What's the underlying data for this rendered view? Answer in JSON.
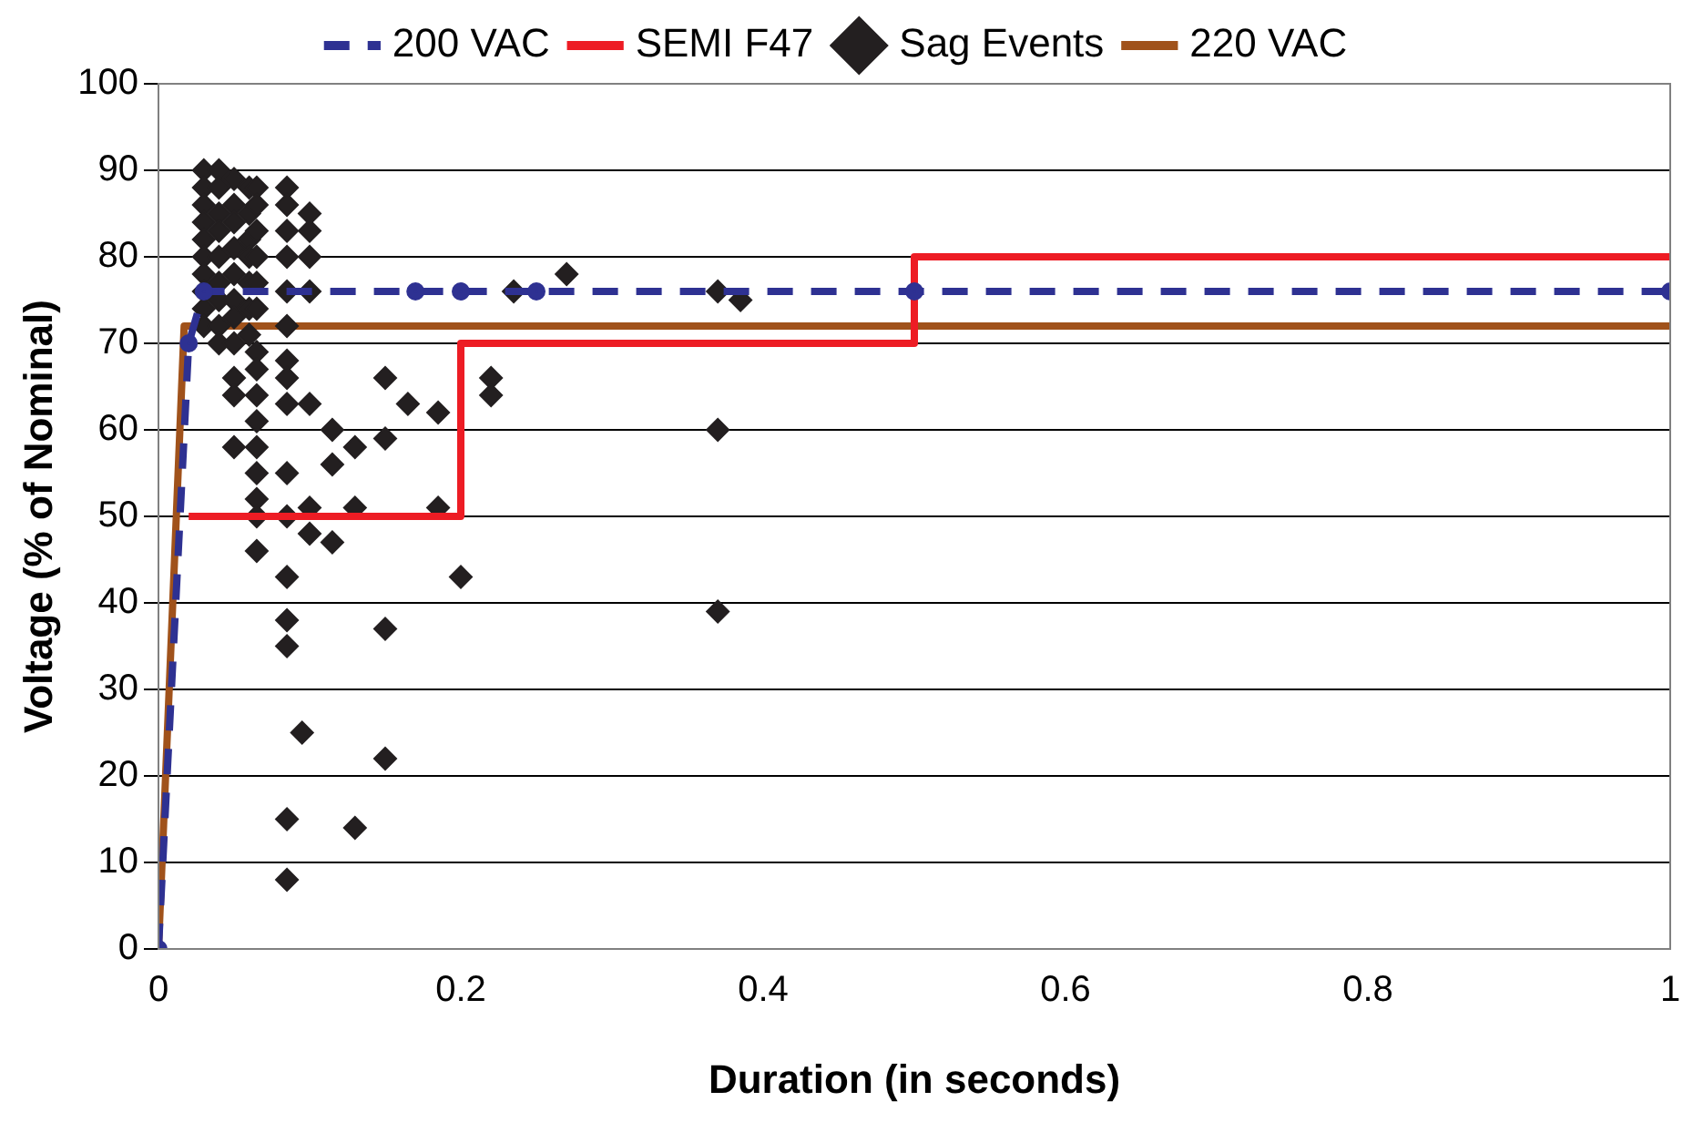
{
  "chart_data": {
    "type": "line",
    "xlabel": "Duration (in seconds)",
    "ylabel": "Voltage (% of Nominal)",
    "xlim": [
      0,
      1
    ],
    "xticks": [
      0,
      0.2,
      0.4,
      0.6,
      0.8,
      1
    ],
    "ylim": [
      0,
      100
    ],
    "yticks": [
      0,
      10,
      20,
      30,
      40,
      50,
      60,
      70,
      80,
      90,
      100
    ],
    "grid": "y",
    "legend": "top",
    "series": [
      {
        "name": "200 VAC",
        "type": "line",
        "color": "#2e3192",
        "line_style": "dashed",
        "marker": "circle",
        "x": [
          0,
          0.02,
          0.03,
          0.17,
          0.2,
          0.25,
          0.5,
          1
        ],
        "values": [
          0,
          70,
          76,
          76,
          76,
          76,
          76,
          76
        ]
      },
      {
        "name": "SEMI F47",
        "type": "line",
        "color": "#ed1c24",
        "line_style": "solid",
        "marker": "none",
        "x": [
          0.02,
          0.2,
          0.2,
          0.5,
          0.5,
          1
        ],
        "values": [
          50,
          50,
          70,
          70,
          80,
          80
        ]
      },
      {
        "name": "Sag Events",
        "type": "scatter",
        "color": "#231f20",
        "marker": "diamond",
        "x": [
          0.03,
          0.03,
          0.03,
          0.03,
          0.03,
          0.03,
          0.03,
          0.03,
          0.03,
          0.03,
          0.04,
          0.04,
          0.04,
          0.04,
          0.04,
          0.04,
          0.04,
          0.04,
          0.04,
          0.05,
          0.05,
          0.05,
          0.05,
          0.05,
          0.05,
          0.05,
          0.05,
          0.05,
          0.05,
          0.05,
          0.06,
          0.06,
          0.06,
          0.06,
          0.06,
          0.06,
          0.06,
          0.065,
          0.065,
          0.065,
          0.065,
          0.065,
          0.065,
          0.065,
          0.065,
          0.065,
          0.065,
          0.065,
          0.065,
          0.065,
          0.065,
          0.065,
          0.085,
          0.085,
          0.085,
          0.085,
          0.085,
          0.085,
          0.085,
          0.085,
          0.085,
          0.085,
          0.085,
          0.085,
          0.085,
          0.085,
          0.085,
          0.085,
          0.095,
          0.1,
          0.1,
          0.1,
          0.1,
          0.1,
          0.1,
          0.1,
          0.115,
          0.115,
          0.115,
          0.13,
          0.13,
          0.13,
          0.15,
          0.15,
          0.15,
          0.15,
          0.165,
          0.185,
          0.185,
          0.2,
          0.22,
          0.22,
          0.235,
          0.27,
          0.37,
          0.37,
          0.37,
          0.385
        ],
        "values": [
          90,
          88,
          86,
          84,
          82,
          80,
          78,
          76,
          74,
          72,
          90,
          88,
          85,
          83,
          80,
          77,
          75,
          72,
          70,
          89,
          86,
          84,
          81,
          78,
          75,
          73,
          70,
          66,
          64,
          58,
          88,
          85,
          82,
          80,
          77,
          74,
          71,
          88,
          86,
          83,
          80,
          77,
          74,
          69,
          67,
          64,
          61,
          58,
          55,
          52,
          50,
          46,
          88,
          86,
          83,
          80,
          76,
          72,
          68,
          66,
          63,
          55,
          50,
          43,
          38,
          35,
          15,
          8,
          25,
          85,
          83,
          80,
          76,
          63,
          51,
          48,
          60,
          56,
          47,
          58,
          51,
          14,
          66,
          59,
          37,
          22,
          63,
          62,
          51,
          43,
          66,
          64,
          76,
          78,
          76,
          60,
          39,
          75
        ]
      },
      {
        "name": "220 VAC",
        "type": "line",
        "color": "#a0521b",
        "line_style": "solid",
        "marker": "none",
        "x": [
          0,
          0.017,
          1
        ],
        "values": [
          0,
          72,
          72
        ]
      }
    ]
  }
}
